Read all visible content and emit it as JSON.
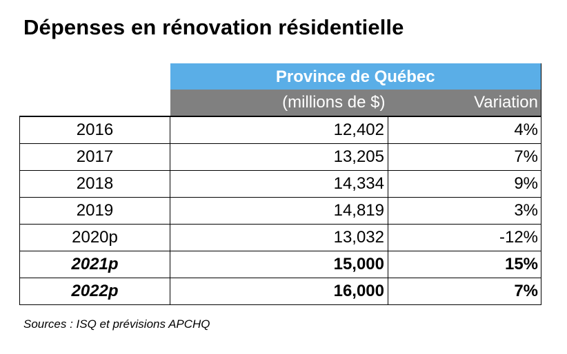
{
  "title": "Dépenses en rénovation résidentielle",
  "table": {
    "region_header": "Province de Québec",
    "columns": {
      "value_header": "(millions de $)",
      "variation_header": "Variation"
    },
    "rows": [
      {
        "year": "2016",
        "value": "12,402",
        "variation": "4%",
        "emphasis": false
      },
      {
        "year": "2017",
        "value": "13,205",
        "variation": "7%",
        "emphasis": false
      },
      {
        "year": "2018",
        "value": "14,334",
        "variation": "9%",
        "emphasis": false
      },
      {
        "year": "2019",
        "value": "14,819",
        "variation": "3%",
        "emphasis": false
      },
      {
        "year": "2020p",
        "value": "13,032",
        "variation": "-12%",
        "emphasis": false
      },
      {
        "year": "2021p",
        "value": "15,000",
        "variation": "15%",
        "emphasis": true
      },
      {
        "year": "2022p",
        "value": "16,000",
        "variation": "7%",
        "emphasis": true
      }
    ]
  },
  "colors": {
    "header_blue": "#5aaee7",
    "header_gray": "#808080"
  },
  "source": "Sources : ISQ et prévisions APCHQ"
}
